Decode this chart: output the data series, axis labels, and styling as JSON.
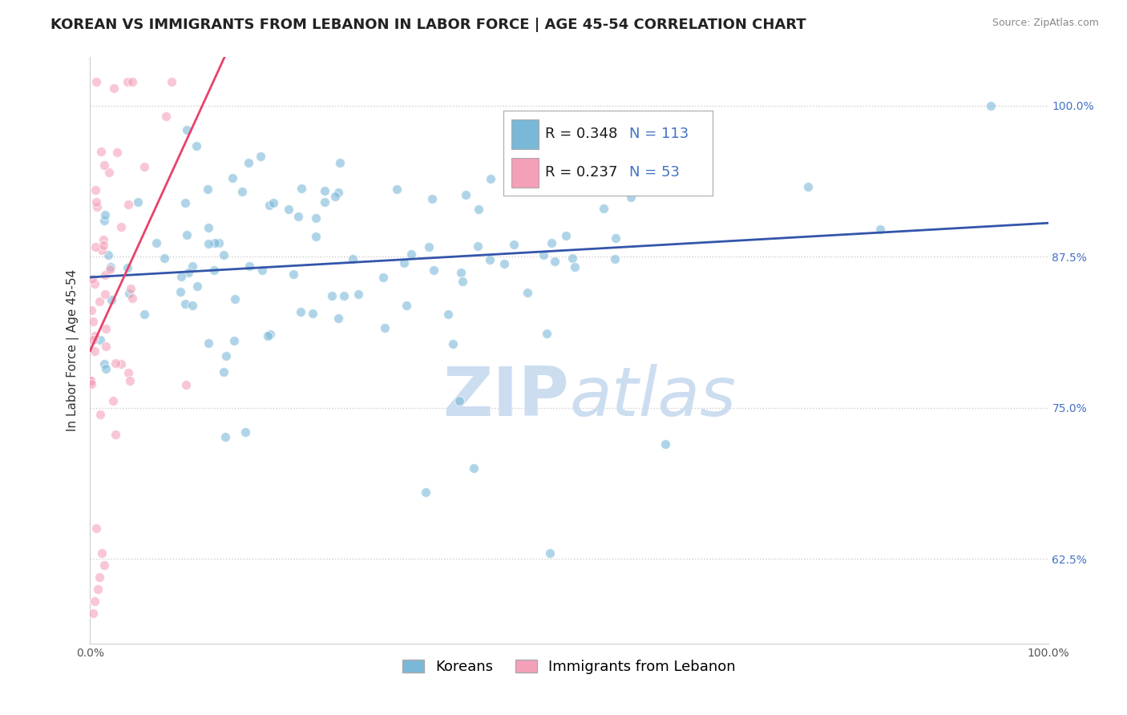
{
  "title": "KOREAN VS IMMIGRANTS FROM LEBANON IN LABOR FORCE | AGE 45-54 CORRELATION CHART",
  "source": "Source: ZipAtlas.com",
  "ylabel": "In Labor Force | Age 45-54",
  "xmin": 0.0,
  "xmax": 1.0,
  "ymin": 0.555,
  "ymax": 1.04,
  "yticks": [
    0.625,
    0.75,
    0.875,
    1.0
  ],
  "ytick_labels": [
    "62.5%",
    "75.0%",
    "87.5%",
    "100.0%"
  ],
  "xtick_labels": [
    "0.0%",
    "100.0%"
  ],
  "korean_R": 0.348,
  "korean_N": 113,
  "lebanon_R": 0.237,
  "lebanon_N": 53,
  "legend_blue_label": "Koreans",
  "legend_pink_label": "Immigrants from Lebanon",
  "korean_color": "#7ab8d8",
  "lebanon_color": "#f4a0b8",
  "korean_line_color": "#3355aa",
  "lebanon_line_color": "#e8426a",
  "background_color": "#ffffff",
  "watermark_zip": "ZIP",
  "watermark_atlas": "atlas",
  "watermark_color": "#ccddf0",
  "title_fontsize": 13,
  "axis_label_fontsize": 11,
  "tick_label_fontsize": 10,
  "legend_fontsize": 13,
  "dot_size": 75,
  "dot_alpha": 0.6
}
